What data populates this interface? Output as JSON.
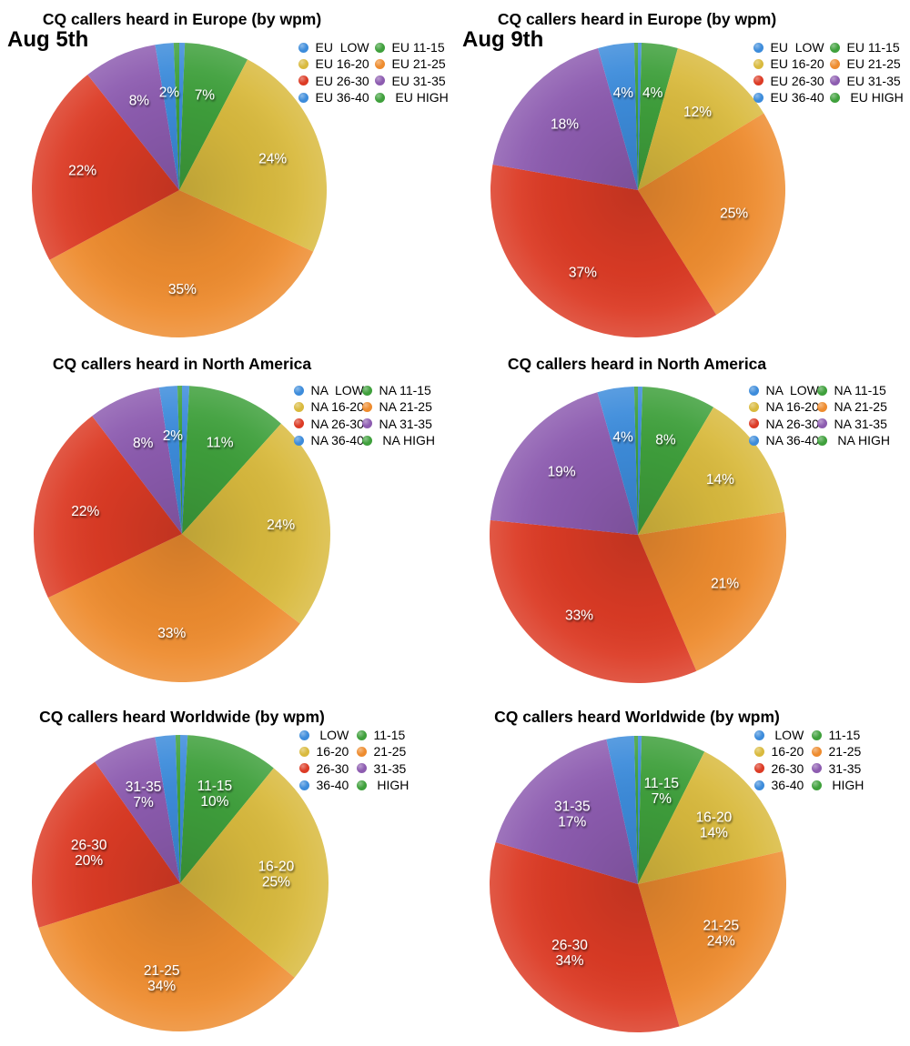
{
  "page": {
    "background": "#ffffff"
  },
  "annotations": {
    "aug5": "Aug 5th",
    "aug9": "Aug 9th"
  },
  "palette": {
    "blue": "#3D8CDB",
    "green": "#3FA03C",
    "yellow": "#D9BA3E",
    "orange": "#EE8C2F",
    "red": "#DC3B25",
    "purple": "#8D5CB0"
  },
  "slice_label_color": "#FFFFFF",
  "title_color": "#000000",
  "chart_data": [
    {
      "type": "pie",
      "title": "CQ callers heard in Europe (by wpm)",
      "date": "Aug 5th",
      "legend_position": "top-right",
      "start_angle_deg": 0,
      "direction": "clockwise",
      "slices": [
        {
          "name": "EU LOW",
          "legend_label": "EU  LOW",
          "color": "blue",
          "value": 0.6,
          "label": [],
          "estimated": true
        },
        {
          "name": "EU 11-15",
          "legend_label": "EU 11-15",
          "color": "green",
          "value": 7,
          "label": [
            "7%"
          ]
        },
        {
          "name": "EU 16-20",
          "legend_label": "EU 16-20",
          "color": "yellow",
          "value": 24,
          "label": [
            "24%"
          ]
        },
        {
          "name": "EU 21-25",
          "legend_label": "EU 21-25",
          "color": "orange",
          "value": 35,
          "label": [
            "35%"
          ]
        },
        {
          "name": "EU 26-30",
          "legend_label": "EU 26-30",
          "color": "red",
          "value": 22,
          "label": [
            "22%"
          ]
        },
        {
          "name": "EU 31-35",
          "legend_label": "EU 31-35",
          "color": "purple",
          "value": 8,
          "label": [
            "8%"
          ]
        },
        {
          "name": "EU 36-40",
          "legend_label": "EU 36-40",
          "color": "blue",
          "value": 2,
          "label": [
            "2%"
          ]
        },
        {
          "name": "EU HIGH",
          "legend_label": " EU HIGH",
          "color": "green",
          "value": 0.6,
          "label": [],
          "estimated": true
        }
      ]
    },
    {
      "type": "pie",
      "title": "CQ callers heard in Europe (by wpm)",
      "date": "Aug 9th",
      "legend_position": "top-right",
      "start_angle_deg": 0,
      "direction": "clockwise",
      "slices": [
        {
          "name": "EU LOW",
          "legend_label": "EU  LOW",
          "color": "blue",
          "value": 0.4,
          "label": [],
          "estimated": true
        },
        {
          "name": "EU 11-15",
          "legend_label": "EU 11-15",
          "color": "green",
          "value": 4,
          "label": [
            "4%"
          ]
        },
        {
          "name": "EU 16-20",
          "legend_label": "EU 16-20",
          "color": "yellow",
          "value": 12,
          "label": [
            "12%"
          ]
        },
        {
          "name": "EU 21-25",
          "legend_label": "EU 21-25",
          "color": "orange",
          "value": 25,
          "label": [
            "25%"
          ]
        },
        {
          "name": "EU 26-30",
          "legend_label": "EU 26-30",
          "color": "red",
          "value": 37,
          "label": [
            "37%"
          ]
        },
        {
          "name": "EU 31-35",
          "legend_label": "EU 31-35",
          "color": "purple",
          "value": 18,
          "label": [
            "18%"
          ]
        },
        {
          "name": "EU 36-40",
          "legend_label": "EU 36-40",
          "color": "blue",
          "value": 4,
          "label": [
            "4%"
          ]
        },
        {
          "name": "EU HIGH",
          "legend_label": " EU HIGH",
          "color": "green",
          "value": 0.4,
          "label": [],
          "estimated": true
        }
      ]
    },
    {
      "type": "pie",
      "title": "CQ callers heard in North America",
      "date": "Aug 5th",
      "legend_position": "top-right",
      "start_angle_deg": 0,
      "direction": "clockwise",
      "slices": [
        {
          "name": "NA LOW",
          "legend_label": "NA  LOW",
          "color": "blue",
          "value": 0.8,
          "label": [],
          "estimated": true
        },
        {
          "name": "NA 11-15",
          "legend_label": "NA 11-15",
          "color": "green",
          "value": 11,
          "label": [
            "11%"
          ]
        },
        {
          "name": "NA 16-20",
          "legend_label": "NA 16-20",
          "color": "yellow",
          "value": 24,
          "label": [
            "24%"
          ]
        },
        {
          "name": "NA 21-25",
          "legend_label": "NA 21-25",
          "color": "orange",
          "value": 33,
          "label": [
            "33%"
          ]
        },
        {
          "name": "NA 26-30",
          "legend_label": "NA 26-30",
          "color": "red",
          "value": 22,
          "label": [
            "22%"
          ]
        },
        {
          "name": "NA 31-35",
          "legend_label": "NA 31-35",
          "color": "purple",
          "value": 8,
          "label": [
            "8%"
          ]
        },
        {
          "name": "NA 36-40",
          "legend_label": "NA 36-40",
          "color": "blue",
          "value": 2,
          "label": [
            "2%"
          ]
        },
        {
          "name": "NA HIGH",
          "legend_label": " NA HIGH",
          "color": "green",
          "value": 0.5,
          "label": [],
          "estimated": true
        }
      ]
    },
    {
      "type": "pie",
      "title": "CQ callers heard in North America",
      "date": "Aug 9th",
      "legend_position": "top-right",
      "start_angle_deg": 0,
      "direction": "clockwise",
      "slices": [
        {
          "name": "NA LOW",
          "legend_label": "NA  LOW",
          "color": "blue",
          "value": 0.5,
          "label": [],
          "estimated": true
        },
        {
          "name": "NA 11-15",
          "legend_label": "NA 11-15",
          "color": "green",
          "value": 8,
          "label": [
            "8%"
          ]
        },
        {
          "name": "NA 16-20",
          "legend_label": "NA 16-20",
          "color": "yellow",
          "value": 14,
          "label": [
            "14%"
          ]
        },
        {
          "name": "NA 21-25",
          "legend_label": "NA 21-25",
          "color": "orange",
          "value": 21,
          "label": [
            "21%"
          ]
        },
        {
          "name": "NA 26-30",
          "legend_label": "NA 26-30",
          "color": "red",
          "value": 33,
          "label": [
            "33%"
          ]
        },
        {
          "name": "NA 31-35",
          "legend_label": "NA 31-35",
          "color": "purple",
          "value": 19,
          "label": [
            "19%"
          ]
        },
        {
          "name": "NA 36-40",
          "legend_label": "NA 36-40",
          "color": "blue",
          "value": 4,
          "label": [
            "4%"
          ]
        },
        {
          "name": "NA HIGH",
          "legend_label": " NA HIGH",
          "color": "green",
          "value": 0.4,
          "label": [],
          "estimated": true
        }
      ]
    },
    {
      "type": "pie",
      "title": "CQ callers heard Worldwide (by wpm)",
      "date": "Aug 5th",
      "legend_position": "top-right",
      "start_angle_deg": 0,
      "direction": "clockwise",
      "slices": [
        {
          "name": "LOW",
          "legend_label": " LOW",
          "color": "blue",
          "value": 0.8,
          "label": [],
          "estimated": true
        },
        {
          "name": "11-15",
          "legend_label": "11-15",
          "color": "green",
          "value": 10,
          "label": [
            "11-15",
            "10%"
          ]
        },
        {
          "name": "16-20",
          "legend_label": "16-20",
          "color": "yellow",
          "value": 25,
          "label": [
            "16-20",
            "25%"
          ]
        },
        {
          "name": "21-25",
          "legend_label": "21-25",
          "color": "orange",
          "value": 34,
          "label": [
            "21-25",
            "34%"
          ]
        },
        {
          "name": "26-30",
          "legend_label": "26-30",
          "color": "red",
          "value": 20,
          "label": [
            "26-30",
            "20%"
          ]
        },
        {
          "name": "31-35",
          "legend_label": "31-35",
          "color": "purple",
          "value": 7,
          "label": [
            "31-35",
            "7%"
          ]
        },
        {
          "name": "36-40",
          "legend_label": "36-40",
          "color": "blue",
          "value": 2.2,
          "label": [],
          "estimated": true
        },
        {
          "name": "HIGH",
          "legend_label": " HIGH",
          "color": "green",
          "value": 0.5,
          "label": [],
          "estimated": true
        }
      ]
    },
    {
      "type": "pie",
      "title": "CQ callers heard Worldwide (by wpm)",
      "date": "Aug 9th",
      "legend_position": "top-right",
      "start_angle_deg": 0,
      "direction": "clockwise",
      "slices": [
        {
          "name": "LOW",
          "legend_label": " LOW",
          "color": "blue",
          "value": 0.4,
          "label": [],
          "estimated": true
        },
        {
          "name": "11-15",
          "legend_label": "11-15",
          "color": "green",
          "value": 7,
          "label": [
            "11-15",
            "7%"
          ]
        },
        {
          "name": "16-20",
          "legend_label": "16-20",
          "color": "yellow",
          "value": 14,
          "label": [
            "16-20",
            "14%"
          ]
        },
        {
          "name": "21-25",
          "legend_label": "21-25",
          "color": "orange",
          "value": 24,
          "label": [
            "21-25",
            "24%"
          ]
        },
        {
          "name": "26-30",
          "legend_label": "26-30",
          "color": "red",
          "value": 34,
          "label": [
            "26-30",
            "34%"
          ]
        },
        {
          "name": "31-35",
          "legend_label": "31-35",
          "color": "purple",
          "value": 17,
          "label": [
            "31-35",
            "17%"
          ]
        },
        {
          "name": "36-40",
          "legend_label": "36-40",
          "color": "blue",
          "value": 3,
          "label": [],
          "estimated": true
        },
        {
          "name": "HIGH",
          "legend_label": " HIGH",
          "color": "green",
          "value": 0.4,
          "label": [],
          "estimated": true
        }
      ]
    }
  ]
}
